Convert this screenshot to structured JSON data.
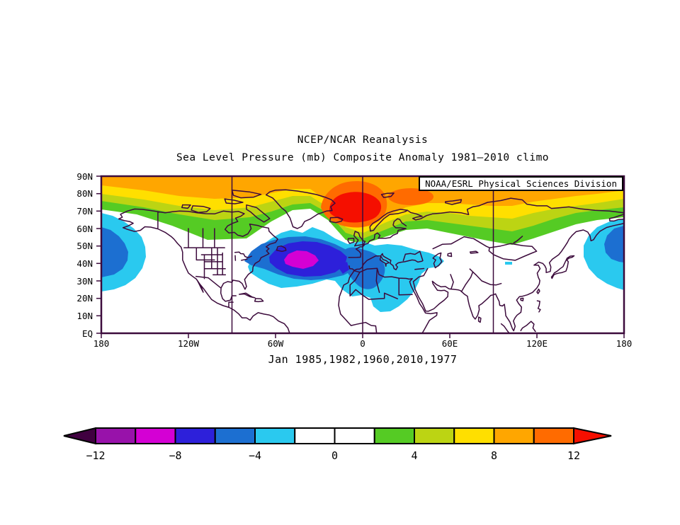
{
  "header": {
    "title": "NCEP/NCAR Reanalysis",
    "subtitle": "Sea Level Pressure (mb) Composite Anomaly 1981–2010 climo"
  },
  "map": {
    "credit": "NOAA/ESRL Physical Sciences Division",
    "lat_labels": [
      "90N",
      "80N",
      "70N",
      "60N",
      "50N",
      "40N",
      "30N",
      "20N",
      "10N",
      "EQ"
    ],
    "lon_labels": [
      "180",
      "120W",
      "60W",
      "0",
      "60E",
      "120E",
      "180"
    ],
    "gridline_longitudes": [
      "90W",
      "0",
      "90E"
    ]
  },
  "caption": "Jan 1985,1982,1960,2010,1977",
  "palette": {
    "m_arrow": "#400040",
    "m5": "#9812aa",
    "m4": "#d400d4",
    "m3": "#2d20da",
    "m2": "#1c6fd1",
    "m1": "#2ac9ef",
    "white": "#ffffff",
    "p1": "#55cb24",
    "p2": "#bcd413",
    "p3": "#ffdf00",
    "p4": "#ffa600",
    "p5": "#ff6b00",
    "p_arrow": "#f50f00",
    "line": "#3c0b3c",
    "text": "#000000"
  },
  "colorbar": {
    "labels": [
      "−12",
      "−8",
      "−4",
      "0",
      "4",
      "8",
      "12"
    ],
    "levels": [
      -12,
      -10,
      -8,
      -6,
      -4,
      -2,
      0,
      2,
      4,
      6,
      8,
      10,
      12
    ],
    "segments": [
      "m5",
      "m4",
      "m3",
      "m2",
      "m1",
      "white",
      "white",
      "p1",
      "p2",
      "p3",
      "p4",
      "p5"
    ],
    "below": "m_arrow",
    "above": "p_arrow"
  },
  "chart_data": {
    "type": "heatmap",
    "title": "NCEP/NCAR Reanalysis",
    "subtitle": "Sea Level Pressure (mb) Composite Anomaly 1981–2010 climo",
    "caption": "Jan 1985,1982,1960,2010,1977",
    "variable": "Sea level pressure composite anomaly",
    "units": "mb",
    "climatology": "1981–2010",
    "composite_months": [
      "Jan 1985",
      "Jan 1982",
      "Jan 1960",
      "Jan 2010",
      "Jan 1977"
    ],
    "credit": "NOAA/ESRL Physical Sciences Division",
    "projection": "equirectangular",
    "lon_range": [
      -180,
      180
    ],
    "lat_range": [
      0,
      90
    ],
    "x_tick_labels": [
      "180",
      "120W",
      "60W",
      "0",
      "60E",
      "120E",
      "180"
    ],
    "y_tick_labels": [
      "EQ",
      "10N",
      "20N",
      "30N",
      "40N",
      "50N",
      "60N",
      "70N",
      "80N",
      "90N"
    ],
    "gridline_longitudes_deg": [
      -90,
      0,
      90
    ],
    "contour_levels": [
      -12,
      -10,
      -8,
      -6,
      -4,
      -2,
      0,
      2,
      4,
      6,
      8,
      10,
      12
    ],
    "colorbar_tick_labels": [
      "-12",
      "-8",
      "-4",
      "0",
      "4",
      "8",
      "12"
    ],
    "colorbar_colors": [
      "#9812aa",
      "#d400d4",
      "#2d20da",
      "#1c6fd1",
      "#2ac9ef",
      "#ffffff",
      "#ffffff",
      "#55cb24",
      "#bcd413",
      "#ffdf00",
      "#ffa600",
      "#ff6b00"
    ],
    "colorbar_below_color": "#400040",
    "colorbar_above_color": "#f50f00",
    "legend_position": "bottom",
    "features": [
      {
        "name": "Arctic / Icelandic positive anomaly",
        "center": {
          "lon": -5,
          "lat": 70
        },
        "approx_peak_mb": 12
      },
      {
        "name": "Positive band across Arctic, Canada and Siberia",
        "approx_value_mb": 3
      },
      {
        "name": "North Atlantic negative anomaly",
        "center": {
          "lon": -39,
          "lat": 42
        },
        "approx_peak_mb": -9
      },
      {
        "name": "Europe / Mediterranean negative anomaly",
        "center": {
          "lon": -2,
          "lat": 37
        },
        "approx_peak_mb": -5
      },
      {
        "name": "North Pacific negative anomaly at dateline",
        "center": {
          "lon": 180,
          "lat": 47
        },
        "approx_peak_mb": -7
      }
    ]
  }
}
